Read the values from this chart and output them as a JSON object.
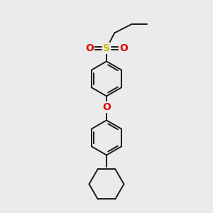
{
  "bg_color": "#ebebeb",
  "bond_color": "#1a1a1a",
  "S_color": "#c8b400",
  "O_color": "#e00000",
  "line_width": 1.4,
  "figsize": [
    3.0,
    3.0
  ],
  "dpi": 100,
  "xlim": [
    0,
    10
  ],
  "ylim": [
    0,
    10
  ]
}
